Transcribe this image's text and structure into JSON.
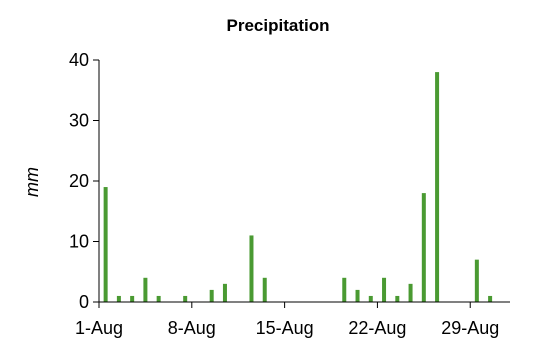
{
  "chart_data": {
    "type": "bar",
    "title": "Precipitation",
    "xlabel": "",
    "ylabel": "mm",
    "ylim": [
      0,
      40
    ],
    "y_ticks": [
      0,
      10,
      20,
      30,
      40
    ],
    "x_tick_labels": [
      "1-Aug",
      "8-Aug",
      "15-Aug",
      "22-Aug",
      "29-Aug"
    ],
    "grid": false,
    "bar_color": "#4a9a32",
    "x": [
      "1-Aug",
      "2-Aug",
      "3-Aug",
      "4-Aug",
      "5-Aug",
      "6-Aug",
      "7-Aug",
      "8-Aug",
      "9-Aug",
      "10-Aug",
      "11-Aug",
      "12-Aug",
      "13-Aug",
      "14-Aug",
      "15-Aug",
      "16-Aug",
      "17-Aug",
      "18-Aug",
      "19-Aug",
      "20-Aug",
      "21-Aug",
      "22-Aug",
      "23-Aug",
      "24-Aug",
      "25-Aug",
      "26-Aug",
      "27-Aug",
      "28-Aug",
      "29-Aug",
      "30-Aug",
      "31-Aug"
    ],
    "values": [
      19,
      1,
      1,
      4,
      1,
      0,
      1,
      0,
      2,
      3,
      0,
      11,
      4,
      0,
      0,
      0,
      0,
      0,
      4,
      2,
      1,
      4,
      1,
      3,
      18,
      38,
      0,
      0,
      7,
      1,
      0
    ]
  }
}
